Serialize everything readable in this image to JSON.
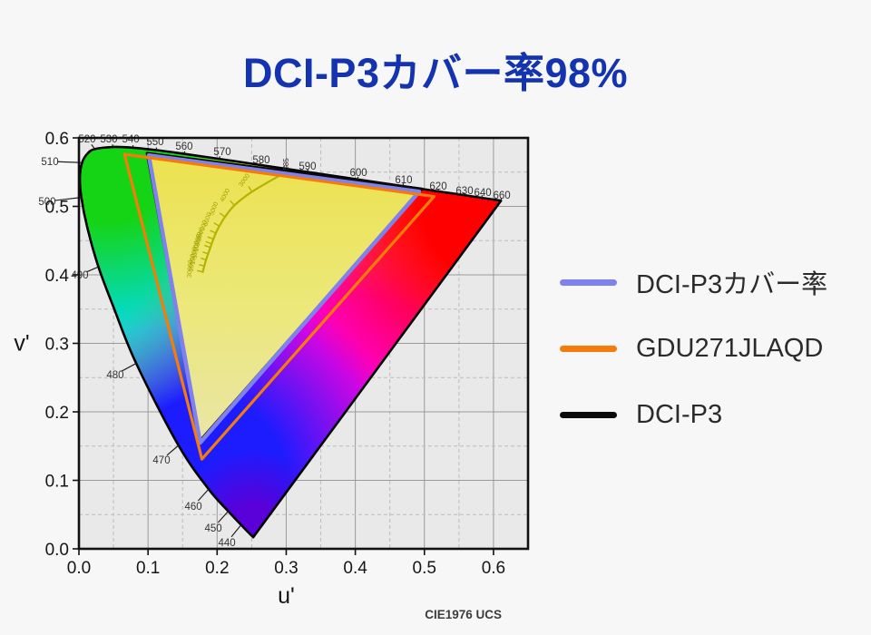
{
  "page": {
    "title": {
      "text": "DCI-P3カバー率98%",
      "color": "#1433b0"
    },
    "background": "#f7f7f7"
  },
  "legend": {
    "items": [
      {
        "label": "DCI-P3カバー率",
        "color": "#7f82ec"
      },
      {
        "label": "GDU271JLAQD",
        "color": "#f57b0b"
      },
      {
        "label": "DCI-P3",
        "color": "#0b0b0b"
      }
    ]
  },
  "chart_data": {
    "type": "line",
    "subtype": "CIE 1976 u'v' chromaticity diagram (color gamut comparison)",
    "xlabel": "u'",
    "ylabel": "v'",
    "xlim": [
      0,
      0.65
    ],
    "ylim": [
      0,
      0.6
    ],
    "xticks": [
      0.0,
      0.1,
      0.2,
      0.3,
      0.4,
      0.5,
      0.6
    ],
    "yticks": [
      0.0,
      0.1,
      0.2,
      0.3,
      0.4,
      0.5,
      0.6
    ],
    "grid": "major solid, minor dashed at 0.05",
    "footnote": "CIE1976 UCS",
    "series": [
      {
        "name": "DCI-P3",
        "color": "#0a0a0a",
        "width": 3.0,
        "closed": true,
        "points": [
          [
            0.0986,
            0.5777
          ],
          [
            0.4964,
            0.5255
          ],
          [
            0.1754,
            0.1579
          ]
        ]
      },
      {
        "name": "DCI-P3カバー率",
        "color": "#7f82ec",
        "width": 4.6,
        "closed": true,
        "points": [
          [
            0.101,
            0.5745
          ],
          [
            0.4925,
            0.5215
          ],
          [
            0.1754,
            0.155
          ]
        ]
      },
      {
        "name": "GDU271JLAQD",
        "color": "#f67c08",
        "width": 3.2,
        "closed": true,
        "points": [
          [
            0.066,
            0.576
          ],
          [
            0.514,
            0.5145
          ],
          [
            0.178,
            0.131
          ]
        ]
      }
    ],
    "coverage_fill": {
      "series": "DCI-P3カバー率",
      "stops": [
        "#ece14e",
        "#ece878",
        "#e9e5a8"
      ]
    },
    "spectral_locus": {
      "points": [
        [
          420,
          0.2522,
          0.0169
        ],
        [
          440,
          0.2347,
          0.035
        ],
        [
          450,
          0.2161,
          0.0549
        ],
        [
          460,
          0.1877,
          0.0871
        ],
        [
          470,
          0.1441,
          0.151
        ],
        [
          480,
          0.0828,
          0.2708
        ],
        [
          485,
          0.0512,
          0.3499
        ],
        [
          490,
          0.0282,
          0.4117
        ],
        [
          495,
          0.0119,
          0.4699
        ],
        [
          500,
          0.0035,
          0.5131
        ],
        [
          505,
          0.0014,
          0.5432
        ],
        [
          510,
          0.0046,
          0.5639
        ],
        [
          515,
          0.0123,
          0.577
        ],
        [
          520,
          0.0231,
          0.5837
        ],
        [
          530,
          0.0501,
          0.5867
        ],
        [
          540,
          0.0792,
          0.5856
        ],
        [
          550,
          0.1127,
          0.5821
        ],
        [
          560,
          0.1531,
          0.5766
        ],
        [
          570,
          0.2026,
          0.5694
        ],
        [
          580,
          0.2623,
          0.5604
        ],
        [
          590,
          0.3315,
          0.5501
        ],
        [
          600,
          0.4035,
          0.5393
        ],
        [
          610,
          0.4691,
          0.5296
        ],
        [
          620,
          0.5203,
          0.5219
        ],
        [
          630,
          0.5565,
          0.5165
        ],
        [
          640,
          0.583,
          0.5125
        ],
        [
          650,
          0.6005,
          0.5099
        ],
        [
          660,
          0.6109,
          0.5084
        ]
      ],
      "labels": [
        {
          "wl": "440",
          "lx": 0.2141,
          "lv": 0.0093
        },
        {
          "wl": "450",
          "lx": 0.1944,
          "lv": 0.0305
        },
        {
          "wl": "460",
          "lx": 0.1655,
          "lv": 0.0623
        },
        {
          "wl": "470",
          "lx": 0.1195,
          "lv": 0.1298
        },
        {
          "wl": "480",
          "lx": 0.0525,
          "lv": 0.2543
        },
        {
          "wl": "490",
          "lx": 0.0013,
          "lv": 0.4
        },
        {
          "wl": "500",
          "lx": -0.046,
          "lv": 0.5073
        },
        {
          "wl": "510",
          "lx": -0.042,
          "lv": 0.5656
        },
        {
          "wl": "520",
          "lx": 0.0118,
          "lv": 0.5987
        },
        {
          "wl": "530",
          "lx": 0.0433,
          "lv": 0.5987
        },
        {
          "wl": "540",
          "lx": 0.0749,
          "lv": 0.5987
        },
        {
          "wl": "550",
          "lx": 0.1103,
          "lv": 0.5947
        },
        {
          "wl": "560",
          "lx": 0.1523,
          "lv": 0.5881
        },
        {
          "wl": "570",
          "lx": 0.2075,
          "lv": 0.5801
        },
        {
          "wl": "580",
          "lx": 0.2639,
          "lv": 0.5682
        },
        {
          "wl": "585",
          "lx": 0.2981,
          "lv": 0.5616,
          "rot": -90,
          "small": true,
          "au": 0.296,
          "av": 0.555
        },
        {
          "wl": "590",
          "lx": 0.3309,
          "lv": 0.5589
        },
        {
          "wl": "600",
          "lx": 0.4045,
          "lv": 0.5497
        },
        {
          "wl": "610",
          "lx": 0.4701,
          "lv": 0.5391
        },
        {
          "wl": "620",
          "lx": 0.52,
          "lv": 0.5298
        },
        {
          "wl": "630",
          "lx": 0.5581,
          "lv": 0.5232
        },
        {
          "wl": "640",
          "lx": 0.5844,
          "lv": 0.5205
        },
        {
          "wl": "660",
          "lx": 0.612,
          "lv": 0.5166
        }
      ]
    },
    "planckian_locus": {
      "curve": [
        [
          0.292,
          0.546
        ],
        [
          0.2505,
          0.5214
        ],
        [
          0.2251,
          0.5016
        ],
        [
          0.2114,
          0.4847
        ],
        [
          0.2033,
          0.4712
        ],
        [
          0.1981,
          0.461
        ],
        [
          0.1946,
          0.4522
        ],
        [
          0.1921,
          0.4454
        ],
        [
          0.1903,
          0.44
        ],
        [
          0.186,
          0.428
        ],
        [
          0.182,
          0.415
        ],
        [
          0.179,
          0.403
        ]
      ],
      "marks": [
        {
          "t": "3000",
          "u": 0.2505,
          "v": 0.5214,
          "a": -55
        },
        {
          "t": "4000",
          "u": 0.2251,
          "v": 0.5016,
          "a": -62
        },
        {
          "t": "5000",
          "u": 0.2114,
          "v": 0.4847,
          "a": -68
        },
        {
          "t": "6000",
          "u": 0.2033,
          "v": 0.4712,
          "a": -72
        },
        {
          "t": "7000",
          "u": 0.1981,
          "v": 0.461,
          "a": -75
        },
        {
          "t": "8000",
          "u": 0.1946,
          "v": 0.4522,
          "a": -77
        },
        {
          "t": "9000",
          "u": 0.1921,
          "v": 0.4454,
          "a": -79
        },
        {
          "t": "10000",
          "u": 0.1903,
          "v": 0.44,
          "a": -81
        },
        {
          "t": "12000",
          "u": 0.1878,
          "v": 0.4305,
          "a": -83
        },
        {
          "t": "15000",
          "u": 0.1852,
          "v": 0.4215,
          "a": -84
        },
        {
          "t": "20000",
          "u": 0.1828,
          "v": 0.4125,
          "a": -85
        },
        {
          "t": "30000",
          "u": 0.18,
          "v": 0.404,
          "a": -86
        }
      ]
    }
  },
  "style": {
    "plot_bg": "#e9e9e9",
    "grid_major": "#9a9a9a",
    "grid_minor": "#bcbcbc",
    "box_border": "#111111",
    "axis_text": "#161616",
    "wavelength_text": "#333333",
    "planckian_color": "#b3b300",
    "planckian_text": "#a2a300",
    "footnote_color": "#3c3c3c",
    "locus_outline": "#000000",
    "base_fill": "#ffe400",
    "gradients": [
      {
        "id": "gMag",
        "cu": 0.4,
        "cv": 0.2,
        "r": 0.42,
        "solid": 0.4,
        "color": "#ff00dc"
      },
      {
        "id": "gBlue",
        "cu": 0.18,
        "cv": 0.1,
        "r": 0.3,
        "solid": 0.4,
        "color": "#1c1cff"
      },
      {
        "id": "gViolet",
        "cu": 0.252,
        "cv": 0.025,
        "r": 0.12,
        "solid": 0.3,
        "color": "#5a00d8"
      },
      {
        "id": "gRed",
        "cu": 0.613,
        "cv": 0.508,
        "r": 0.34,
        "solid": 0.35,
        "color": "#ff0000"
      },
      {
        "id": "gCyan",
        "cu": 0.012,
        "cv": 0.44,
        "r": 0.26,
        "solid": 0.4,
        "color": "#00dce8"
      },
      {
        "id": "gGreen",
        "cu": 0.045,
        "cv": 0.565,
        "r": 0.25,
        "solid": 0.35,
        "color": "#15d415"
      }
    ]
  }
}
